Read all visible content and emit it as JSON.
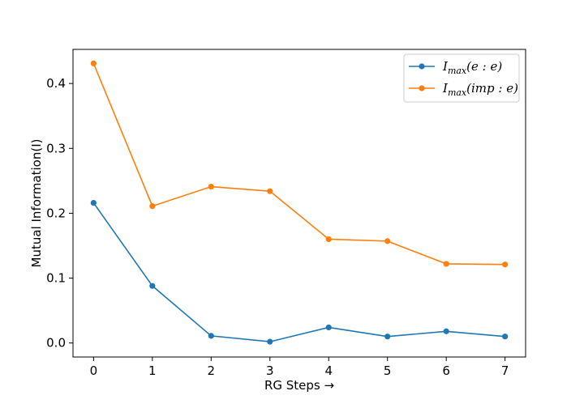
{
  "chart_data": {
    "type": "line",
    "x": [
      0,
      1,
      2,
      3,
      4,
      5,
      6,
      7
    ],
    "series": [
      {
        "name": "I_max(e : e)",
        "name_main": "I",
        "name_sub": "max",
        "name_arg": "(e : e)",
        "color": "#1f77b4",
        "values": [
          0.216,
          0.088,
          0.011,
          0.002,
          0.024,
          0.01,
          0.018,
          0.01
        ]
      },
      {
        "name": "I_max(imp : e)",
        "name_main": "I",
        "name_sub": "max",
        "name_arg": "(imp : e)",
        "color": "#ff7f0e",
        "values": [
          0.431,
          0.211,
          0.241,
          0.234,
          0.16,
          0.157,
          0.122,
          0.121
        ]
      }
    ],
    "xlabel": "RG Steps  →",
    "ylabel": "Mutual Information(I)",
    "xlim": [
      -0.35,
      7.35
    ],
    "ylim": [
      -0.0216,
      0.4526
    ],
    "xticks": [
      0,
      1,
      2,
      3,
      4,
      5,
      6,
      7
    ],
    "yticks": [
      0.0,
      0.1,
      0.2,
      0.3,
      0.4
    ],
    "ytick_labels": [
      "0.0",
      "0.1",
      "0.2",
      "0.3",
      "0.4"
    ],
    "grid": false,
    "legend_position": "top-right"
  }
}
